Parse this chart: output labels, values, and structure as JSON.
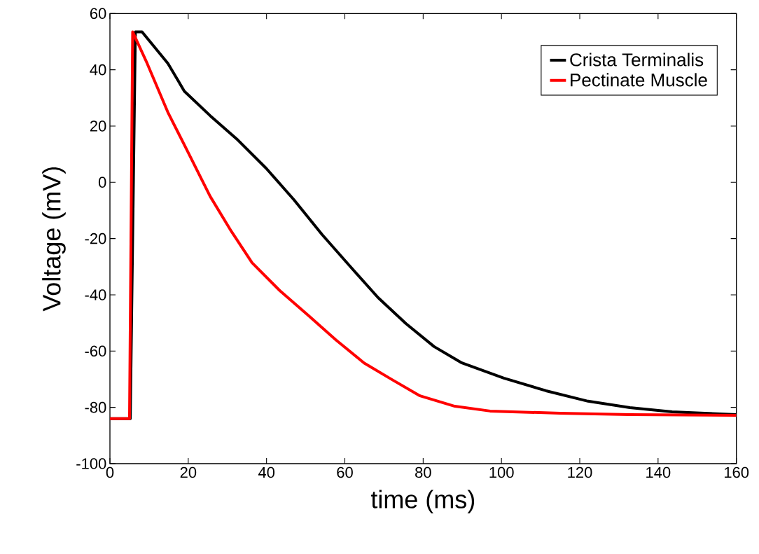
{
  "chart_data": {
    "type": "line",
    "xlabel": "time (ms)",
    "ylabel": "Voltage (mV)",
    "xlim": [
      0,
      160
    ],
    "ylim": [
      -100,
      60
    ],
    "xticks": [
      0,
      20,
      40,
      60,
      80,
      100,
      120,
      140,
      160
    ],
    "yticks": [
      -100,
      -80,
      -60,
      -40,
      -20,
      0,
      20,
      40,
      60
    ],
    "grid": false,
    "legend": "top right",
    "marker": "none",
    "line_style": "solid",
    "series": [
      {
        "name": "Crista Terminalis",
        "color": "#000000",
        "x": [
          0,
          5.2,
          6.5,
          8.2,
          14.8,
          19,
          25.6,
          32.7,
          39.9,
          47,
          54.2,
          61.3,
          68.5,
          75.6,
          82.8,
          89.9,
          100.6,
          111.4,
          122.1,
          132.8,
          143.6,
          160
        ],
        "values": [
          -84,
          -84,
          53.5,
          53.5,
          42.3,
          32.4,
          23.7,
          15,
          5,
          -6.2,
          -18.6,
          -29.8,
          -41,
          -50.2,
          -58.4,
          -64.2,
          -69.6,
          -74.1,
          -77.8,
          -80.1,
          -81.6,
          -82.6
        ]
      },
      {
        "name": "Pectinate Muscle",
        "color": "#ff0000",
        "x": [
          0,
          5,
          5.8,
          9.5,
          14.8,
          20.2,
          25.6,
          31,
          36.3,
          43.4,
          50.6,
          57.7,
          64.9,
          72,
          79.2,
          88.1,
          97.1,
          115,
          132.8,
          160
        ],
        "values": [
          -84,
          -84,
          53.5,
          42.3,
          24.9,
          10,
          -5,
          -17.4,
          -28.6,
          -38.5,
          -47.2,
          -56,
          -64.2,
          -70.1,
          -75.9,
          -79.6,
          -81.3,
          -82.1,
          -82.6,
          -82.8
        ]
      }
    ]
  }
}
